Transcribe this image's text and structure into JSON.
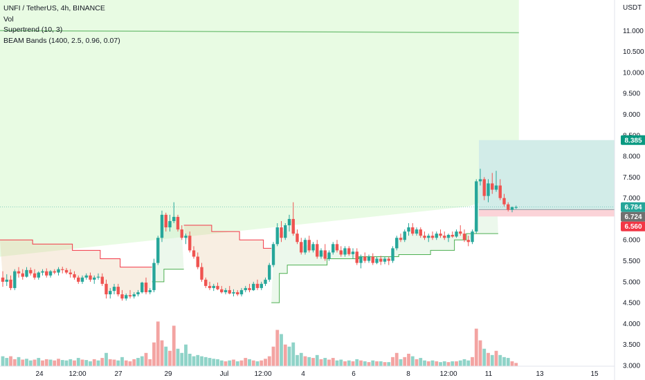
{
  "legend": {
    "symbol": "UNFI / TetherUS, 4h, BINANCE",
    "vol": "Vol",
    "supertrend": "Supertrend (10, 3)",
    "beam": "BEAM Bands (1400, 2.5, 0.96, 0.07)"
  },
  "colors": {
    "up": "#26a69a",
    "down": "#ef5350",
    "vol_up": "#8fd3c8",
    "vol_down": "#f3a4a2",
    "supertrend_up": "#4caf50",
    "supertrend_down": "#f23645",
    "beam_fill": "#e8fbe3",
    "beam_line": "#81c784",
    "target_fill": "#d2ece8",
    "stop_fill": "#fbd3d8",
    "target_tag": "#089981",
    "stop_tag": "#f23645",
    "last_tag": "#707070",
    "price_tag": "#26a69a"
  },
  "chart_data": {
    "type": "candlestick",
    "y_unit": "USDT",
    "ylim": [
      2.95,
      11.6
    ],
    "y_ticks": [
      "3.000",
      "3.500",
      "4.000",
      "4.500",
      "5.000",
      "5.500",
      "6.000",
      "6.500",
      "7.000",
      "7.500",
      "8.000",
      "8.500",
      "9.000",
      "9.500",
      "10.000",
      "10.500",
      "11.000"
    ],
    "x_ticks": [
      "24",
      "12:00",
      "27",
      "29",
      "Jul",
      "12:00",
      "4",
      "6",
      "8",
      "12:00",
      "11",
      "13",
      "15"
    ],
    "ohlc": [
      [
        5.1,
        5.25,
        4.88,
        5.0
      ],
      [
        5.0,
        5.18,
        4.9,
        5.05
      ],
      [
        5.05,
        5.15,
        4.8,
        4.85
      ],
      [
        4.85,
        5.3,
        4.8,
        5.25
      ],
      [
        5.25,
        5.35,
        5.1,
        5.2
      ],
      [
        5.2,
        5.3,
        5.05,
        5.12
      ],
      [
        5.12,
        5.35,
        5.1,
        5.28
      ],
      [
        5.28,
        5.34,
        5.15,
        5.2
      ],
      [
        5.2,
        5.3,
        5.05,
        5.1
      ],
      [
        5.1,
        5.25,
        5.05,
        5.22
      ],
      [
        5.22,
        5.3,
        5.15,
        5.25
      ],
      [
        5.25,
        5.32,
        5.1,
        5.15
      ],
      [
        5.15,
        5.28,
        5.1,
        5.25
      ],
      [
        5.25,
        5.3,
        5.18,
        5.22
      ],
      [
        5.22,
        5.35,
        5.15,
        5.3
      ],
      [
        5.3,
        5.36,
        5.2,
        5.28
      ],
      [
        5.28,
        5.33,
        5.18,
        5.22
      ],
      [
        5.22,
        5.3,
        5.1,
        5.18
      ],
      [
        5.18,
        5.25,
        5.05,
        5.1
      ],
      [
        5.1,
        5.15,
        4.95,
        5.0
      ],
      [
        5.0,
        5.15,
        4.95,
        5.1
      ],
      [
        5.1,
        5.2,
        5.05,
        5.15
      ],
      [
        5.15,
        5.22,
        5.0,
        5.05
      ],
      [
        5.05,
        5.15,
        4.95,
        5.1
      ],
      [
        5.1,
        5.2,
        5.05,
        5.12
      ],
      [
        5.12,
        5.2,
        4.9,
        4.95
      ],
      [
        4.95,
        5.05,
        4.6,
        4.7
      ],
      [
        4.7,
        4.85,
        4.6,
        4.78
      ],
      [
        4.78,
        4.95,
        4.7,
        4.88
      ],
      [
        4.88,
        4.95,
        4.65,
        4.7
      ],
      [
        4.7,
        4.8,
        4.55,
        4.6
      ],
      [
        4.6,
        4.72,
        4.55,
        4.68
      ],
      [
        4.68,
        4.8,
        4.6,
        4.65
      ],
      [
        4.65,
        4.75,
        4.6,
        4.7
      ],
      [
        4.7,
        4.8,
        4.65,
        4.75
      ],
      [
        4.75,
        5.0,
        4.72,
        4.98
      ],
      [
        4.98,
        5.1,
        4.7,
        4.75
      ],
      [
        4.75,
        4.85,
        4.7,
        4.8
      ],
      [
        4.8,
        5.55,
        4.75,
        5.45
      ],
      [
        5.45,
        6.1,
        5.4,
        6.05
      ],
      [
        6.05,
        6.7,
        5.95,
        6.6
      ],
      [
        6.6,
        6.65,
        6.2,
        6.3
      ],
      [
        6.3,
        6.6,
        6.2,
        6.45
      ],
      [
        6.45,
        6.9,
        6.4,
        6.55
      ],
      [
        6.55,
        6.6,
        6.2,
        6.25
      ],
      [
        6.25,
        6.35,
        6.0,
        6.05
      ],
      [
        6.05,
        6.15,
        5.9,
        6.1
      ],
      [
        6.1,
        6.2,
        5.7,
        5.75
      ],
      [
        5.75,
        5.85,
        5.55,
        5.6
      ],
      [
        5.6,
        5.7,
        5.3,
        5.35
      ],
      [
        5.35,
        5.45,
        5.0,
        5.05
      ],
      [
        5.05,
        5.1,
        4.85,
        4.9
      ],
      [
        4.9,
        5.0,
        4.8,
        4.85
      ],
      [
        4.85,
        4.95,
        4.78,
        4.9
      ],
      [
        4.9,
        4.98,
        4.8,
        4.82
      ],
      [
        4.82,
        4.9,
        4.72,
        4.75
      ],
      [
        4.75,
        4.85,
        4.7,
        4.8
      ],
      [
        4.8,
        4.9,
        4.7,
        4.72
      ],
      [
        4.72,
        4.82,
        4.65,
        4.75
      ],
      [
        4.75,
        4.8,
        4.66,
        4.7
      ],
      [
        4.7,
        4.85,
        4.65,
        4.8
      ],
      [
        4.8,
        4.9,
        4.75,
        4.85
      ],
      [
        4.85,
        4.95,
        4.75,
        4.8
      ],
      [
        4.8,
        5.0,
        4.78,
        4.95
      ],
      [
        4.95,
        5.05,
        4.8,
        4.85
      ],
      [
        4.85,
        5.0,
        4.8,
        4.95
      ],
      [
        4.95,
        5.1,
        4.9,
        5.05
      ],
      [
        5.05,
        5.45,
        5.0,
        5.4
      ],
      [
        5.4,
        5.95,
        5.35,
        5.9
      ],
      [
        5.9,
        6.4,
        5.85,
        6.3
      ],
      [
        6.3,
        6.45,
        5.95,
        6.05
      ],
      [
        6.05,
        6.4,
        6.0,
        6.35
      ],
      [
        6.35,
        6.6,
        6.2,
        6.5
      ],
      [
        6.5,
        6.9,
        6.1,
        6.15
      ],
      [
        6.15,
        6.25,
        5.9,
        5.95
      ],
      [
        5.95,
        6.05,
        5.65,
        5.7
      ],
      [
        5.7,
        6.05,
        5.65,
        6.0
      ],
      [
        6.0,
        6.1,
        5.7,
        5.75
      ],
      [
        5.75,
        5.95,
        5.7,
        5.9
      ],
      [
        5.9,
        6.0,
        5.55,
        5.6
      ],
      [
        5.6,
        5.8,
        5.55,
        5.75
      ],
      [
        5.75,
        5.9,
        5.5,
        5.55
      ],
      [
        5.55,
        5.75,
        5.5,
        5.7
      ],
      [
        5.7,
        5.95,
        5.65,
        5.9
      ],
      [
        5.9,
        6.0,
        5.7,
        5.75
      ],
      [
        5.75,
        5.85,
        5.6,
        5.65
      ],
      [
        5.65,
        5.85,
        5.6,
        5.8
      ],
      [
        5.8,
        5.85,
        5.62,
        5.66
      ],
      [
        5.66,
        5.8,
        5.55,
        5.72
      ],
      [
        5.72,
        5.8,
        5.4,
        5.45
      ],
      [
        5.45,
        5.65,
        5.32,
        5.6
      ],
      [
        5.6,
        5.7,
        5.45,
        5.5
      ],
      [
        5.5,
        5.65,
        5.45,
        5.6
      ],
      [
        5.6,
        5.68,
        5.4,
        5.45
      ],
      [
        5.45,
        5.6,
        5.42,
        5.55
      ],
      [
        5.55,
        5.62,
        5.4,
        5.48
      ],
      [
        5.48,
        5.6,
        5.42,
        5.55
      ],
      [
        5.55,
        5.6,
        5.4,
        5.5
      ],
      [
        5.5,
        5.85,
        5.45,
        5.8
      ],
      [
        5.8,
        6.1,
        5.75,
        6.05
      ],
      [
        6.05,
        6.15,
        5.95,
        6.0
      ],
      [
        6.0,
        6.25,
        5.95,
        6.2
      ],
      [
        6.2,
        6.4,
        6.1,
        6.3
      ],
      [
        6.3,
        6.4,
        6.1,
        6.15
      ],
      [
        6.15,
        6.3,
        6.1,
        6.25
      ],
      [
        6.25,
        6.3,
        6.05,
        6.1
      ],
      [
        6.1,
        6.2,
        6.0,
        6.05
      ],
      [
        6.05,
        6.15,
        5.95,
        6.1
      ],
      [
        6.1,
        6.2,
        6.0,
        6.05
      ],
      [
        6.05,
        6.2,
        6.0,
        6.15
      ],
      [
        6.15,
        6.25,
        6.05,
        6.1
      ],
      [
        6.1,
        6.2,
        6.0,
        6.05
      ],
      [
        6.05,
        6.15,
        5.95,
        6.12
      ],
      [
        6.12,
        6.2,
        6.05,
        6.08
      ],
      [
        6.08,
        6.25,
        6.05,
        6.2
      ],
      [
        6.2,
        6.35,
        6.1,
        6.15
      ],
      [
        6.15,
        6.25,
        5.95,
        6.0
      ],
      [
        6.0,
        6.1,
        5.85,
        5.95
      ],
      [
        5.95,
        6.25,
        5.9,
        6.2
      ],
      [
        6.2,
        7.45,
        6.15,
        7.4
      ],
      [
        7.4,
        7.7,
        7.3,
        7.45
      ],
      [
        7.45,
        7.5,
        6.95,
        7.05
      ],
      [
        7.05,
        7.45,
        6.9,
        7.35
      ],
      [
        7.35,
        7.6,
        7.1,
        7.2
      ],
      [
        7.2,
        7.65,
        7.15,
        7.3
      ],
      [
        7.3,
        7.45,
        6.95,
        7.0
      ],
      [
        7.0,
        7.1,
        6.8,
        6.85
      ],
      [
        6.85,
        6.9,
        6.68,
        6.72
      ],
      [
        6.72,
        6.8,
        6.66,
        6.78
      ],
      [
        6.78,
        6.82,
        6.74,
        6.784
      ]
    ],
    "volume": [
      [
        3.22,
        1
      ],
      [
        3.18,
        1
      ],
      [
        3.22,
        0
      ],
      [
        3.15,
        0
      ],
      [
        3.2,
        1
      ],
      [
        3.14,
        0
      ],
      [
        3.16,
        1
      ],
      [
        3.12,
        1
      ],
      [
        3.14,
        0
      ],
      [
        3.18,
        1
      ],
      [
        3.12,
        0
      ],
      [
        3.15,
        0
      ],
      [
        3.14,
        1
      ],
      [
        3.12,
        0
      ],
      [
        3.16,
        0
      ],
      [
        3.13,
        1
      ],
      [
        3.12,
        1
      ],
      [
        3.15,
        1
      ],
      [
        3.12,
        0
      ],
      [
        3.18,
        1
      ],
      [
        3.14,
        0
      ],
      [
        3.13,
        1
      ],
      [
        3.1,
        1
      ],
      [
        3.15,
        0
      ],
      [
        3.12,
        1
      ],
      [
        3.18,
        0
      ],
      [
        3.3,
        1
      ],
      [
        3.15,
        0
      ],
      [
        3.14,
        0
      ],
      [
        3.12,
        1
      ],
      [
        3.2,
        1
      ],
      [
        3.12,
        0
      ],
      [
        3.1,
        0
      ],
      [
        3.15,
        0
      ],
      [
        3.18,
        1
      ],
      [
        3.22,
        1
      ],
      [
        3.3,
        0
      ],
      [
        3.15,
        0
      ],
      [
        3.55,
        0
      ],
      [
        4.05,
        0
      ],
      [
        3.6,
        0
      ],
      [
        3.45,
        1
      ],
      [
        3.35,
        0
      ],
      [
        3.95,
        0
      ],
      [
        3.4,
        1
      ],
      [
        3.3,
        1
      ],
      [
        3.5,
        1
      ],
      [
        3.28,
        1
      ],
      [
        3.22,
        1
      ],
      [
        3.25,
        1
      ],
      [
        3.22,
        1
      ],
      [
        3.2,
        1
      ],
      [
        3.18,
        1
      ],
      [
        3.16,
        1
      ],
      [
        3.15,
        1
      ],
      [
        3.12,
        1
      ],
      [
        3.1,
        0
      ],
      [
        3.12,
        1
      ],
      [
        3.14,
        0
      ],
      [
        3.1,
        1
      ],
      [
        3.12,
        0
      ],
      [
        3.18,
        0
      ],
      [
        3.15,
        1
      ],
      [
        3.12,
        0
      ],
      [
        3.1,
        1
      ],
      [
        3.12,
        0
      ],
      [
        3.16,
        0
      ],
      [
        3.22,
        0
      ],
      [
        3.45,
        0
      ],
      [
        3.85,
        0
      ],
      [
        3.75,
        1
      ],
      [
        3.5,
        0
      ],
      [
        3.45,
        1
      ],
      [
        3.55,
        1
      ],
      [
        3.25,
        1
      ],
      [
        3.3,
        1
      ],
      [
        3.22,
        0
      ],
      [
        3.2,
        1
      ],
      [
        3.18,
        0
      ],
      [
        3.25,
        1
      ],
      [
        3.15,
        0
      ],
      [
        3.18,
        1
      ],
      [
        3.14,
        0
      ],
      [
        3.18,
        0
      ],
      [
        3.12,
        1
      ],
      [
        3.14,
        1
      ],
      [
        3.1,
        0
      ],
      [
        3.12,
        1
      ],
      [
        3.1,
        0
      ],
      [
        3.15,
        1
      ],
      [
        3.12,
        0
      ],
      [
        3.1,
        1
      ],
      [
        3.08,
        0
      ],
      [
        3.12,
        1
      ],
      [
        3.1,
        0
      ],
      [
        3.1,
        1
      ],
      [
        3.08,
        0
      ],
      [
        3.08,
        1
      ],
      [
        3.2,
        0
      ],
      [
        3.3,
        0
      ],
      [
        3.15,
        1
      ],
      [
        3.2,
        0
      ],
      [
        3.28,
        0
      ],
      [
        3.22,
        1
      ],
      [
        3.15,
        0
      ],
      [
        3.18,
        1
      ],
      [
        3.12,
        1
      ],
      [
        3.1,
        0
      ],
      [
        3.12,
        1
      ],
      [
        3.1,
        0
      ],
      [
        3.08,
        1
      ],
      [
        3.1,
        1
      ],
      [
        3.08,
        0
      ],
      [
        3.1,
        1
      ],
      [
        3.1,
        0
      ],
      [
        3.12,
        1
      ],
      [
        3.15,
        1
      ],
      [
        3.12,
        1
      ],
      [
        3.2,
        0
      ],
      [
        3.88,
        0
      ],
      [
        3.6,
        0
      ],
      [
        3.4,
        1
      ],
      [
        3.3,
        0
      ],
      [
        3.25,
        1
      ],
      [
        3.35,
        0
      ],
      [
        3.25,
        1
      ],
      [
        3.2,
        1
      ],
      [
        3.18,
        1
      ],
      [
        3.1,
        0
      ],
      [
        3.06,
        0
      ]
    ],
    "supertrend_down": [
      {
        "from": 0,
        "to": 8,
        "v": 6.0
      },
      {
        "from": 8,
        "to": 18,
        "v": 5.9
      },
      {
        "from": 18,
        "to": 25,
        "v": 5.75
      },
      {
        "from": 25,
        "to": 30,
        "v": 5.55
      },
      {
        "from": 30,
        "to": 38,
        "v": 5.35
      }
    ],
    "supertrend_down2": [
      {
        "from": 46,
        "to": 53,
        "v": 6.35
      },
      {
        "from": 53,
        "to": 60,
        "v": 6.2
      },
      {
        "from": 60,
        "to": 66,
        "v": 6.0
      },
      {
        "from": 66,
        "to": 68,
        "v": 5.8
      }
    ],
    "supertrend_up": [
      {
        "from": 38,
        "to": 41,
        "v": 5.0
      },
      {
        "from": 41,
        "to": 46,
        "v": 5.3
      }
    ],
    "supertrend_up2": [
      {
        "from": 68,
        "to": 70,
        "v": 4.5
      },
      {
        "from": 70,
        "to": 72,
        "v": 5.2
      },
      {
        "from": 72,
        "to": 82,
        "v": 5.4
      },
      {
        "from": 82,
        "to": 90,
        "v": 5.55
      },
      {
        "from": 90,
        "to": 100,
        "v": 5.6
      },
      {
        "from": 100,
        "to": 108,
        "v": 5.65
      },
      {
        "from": 108,
        "to": 114,
        "v": 5.75
      },
      {
        "from": 114,
        "to": 117,
        "v": 6.0
      },
      {
        "from": 117,
        "to": 125,
        "v": 6.15
      }
    ],
    "beam_band": {
      "upper_start": 11.0,
      "upper_end": 10.95
    },
    "position": {
      "target": 8.385,
      "entry": 6.724,
      "stop": 6.56
    },
    "last_price": 6.784,
    "price_labels": {
      "target": "8.385",
      "last": "6.784",
      "entry": "6.724",
      "stop": "6.560"
    }
  }
}
